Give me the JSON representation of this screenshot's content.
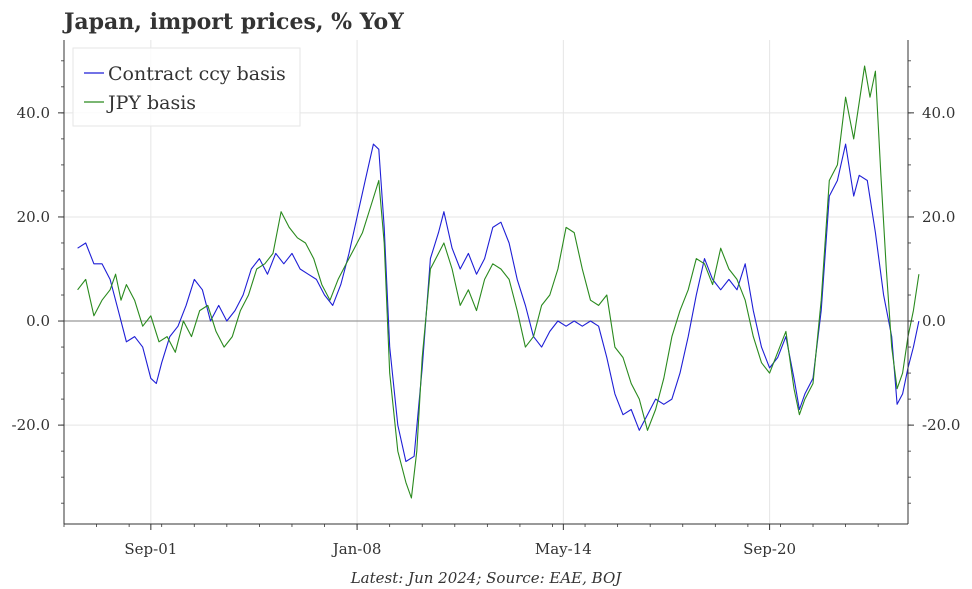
{
  "chart_data": {
    "type": "line",
    "title": "Japan, import prices, % YoY",
    "footnote": "Latest: Jun 2024; Source: EAE, BOJ",
    "xlabel": "",
    "ylabel": "",
    "xlim": [
      "1999-01",
      "2024-12"
    ],
    "ylim": [
      -39,
      54
    ],
    "x_ticks": [
      {
        "label": "Sep-01",
        "date": "2001-09"
      },
      {
        "label": "Jan-08",
        "date": "2008-01"
      },
      {
        "label": "May-14",
        "date": "2014-05"
      },
      {
        "label": "Sep-20",
        "date": "2020-09"
      }
    ],
    "y_ticks": [
      {
        "label": "-20.0",
        "value": -20
      },
      {
        "label": "0.0",
        "value": 0
      },
      {
        "label": "20.0",
        "value": 20
      },
      {
        "label": "40.0",
        "value": 40
      }
    ],
    "y_axis_both_sides": true,
    "grid": true,
    "zero_line": true,
    "legend_position": "top-left",
    "series": [
      {
        "name": "Contract ccy basis",
        "color": "#1f1fd6",
        "points": [
          [
            "1999-06",
            14
          ],
          [
            "1999-09",
            15
          ],
          [
            "1999-12",
            11
          ],
          [
            "2000-03",
            11
          ],
          [
            "2000-06",
            8
          ],
          [
            "2000-09",
            2
          ],
          [
            "2000-12",
            -4
          ],
          [
            "2001-03",
            -3
          ],
          [
            "2001-06",
            -5
          ],
          [
            "2001-09",
            -11
          ],
          [
            "2001-11",
            -12
          ],
          [
            "2002-01",
            -8
          ],
          [
            "2002-04",
            -3
          ],
          [
            "2002-07",
            -1
          ],
          [
            "2002-10",
            3
          ],
          [
            "2003-01",
            8
          ],
          [
            "2003-04",
            6
          ],
          [
            "2003-07",
            0
          ],
          [
            "2003-10",
            3
          ],
          [
            "2004-01",
            0
          ],
          [
            "2004-04",
            2
          ],
          [
            "2004-07",
            5
          ],
          [
            "2004-10",
            10
          ],
          [
            "2005-01",
            12
          ],
          [
            "2005-04",
            9
          ],
          [
            "2005-07",
            13
          ],
          [
            "2005-10",
            11
          ],
          [
            "2006-01",
            13
          ],
          [
            "2006-04",
            10
          ],
          [
            "2006-07",
            9
          ],
          [
            "2006-10",
            8
          ],
          [
            "2007-01",
            5
          ],
          [
            "2007-04",
            3
          ],
          [
            "2007-07",
            7
          ],
          [
            "2007-10",
            13
          ],
          [
            "2008-01",
            20
          ],
          [
            "2008-04",
            27
          ],
          [
            "2008-07",
            34
          ],
          [
            "2008-09",
            33
          ],
          [
            "2008-11",
            18
          ],
          [
            "2009-01",
            -5
          ],
          [
            "2009-04",
            -20
          ],
          [
            "2009-07",
            -27
          ],
          [
            "2009-10",
            -26
          ],
          [
            "2010-01",
            -9
          ],
          [
            "2010-04",
            12
          ],
          [
            "2010-07",
            17
          ],
          [
            "2010-09",
            21
          ],
          [
            "2010-12",
            14
          ],
          [
            "2011-03",
            10
          ],
          [
            "2011-06",
            13
          ],
          [
            "2011-09",
            9
          ],
          [
            "2011-12",
            12
          ],
          [
            "2012-03",
            18
          ],
          [
            "2012-06",
            19
          ],
          [
            "2012-09",
            15
          ],
          [
            "2012-12",
            8
          ],
          [
            "2013-03",
            3
          ],
          [
            "2013-06",
            -3
          ],
          [
            "2013-09",
            -5
          ],
          [
            "2013-12",
            -2
          ],
          [
            "2014-03",
            0
          ],
          [
            "2014-06",
            -1
          ],
          [
            "2014-09",
            0
          ],
          [
            "2014-12",
            -1
          ],
          [
            "2015-03",
            0
          ],
          [
            "2015-06",
            -1
          ],
          [
            "2015-09",
            -7
          ],
          [
            "2015-12",
            -14
          ],
          [
            "2016-03",
            -18
          ],
          [
            "2016-06",
            -17
          ],
          [
            "2016-09",
            -21
          ],
          [
            "2016-12",
            -18
          ],
          [
            "2017-03",
            -15
          ],
          [
            "2017-06",
            -16
          ],
          [
            "2017-09",
            -15
          ],
          [
            "2017-12",
            -10
          ],
          [
            "2018-03",
            -3
          ],
          [
            "2018-06",
            5
          ],
          [
            "2018-09",
            12
          ],
          [
            "2018-12",
            8
          ],
          [
            "2019-03",
            6
          ],
          [
            "2019-06",
            8
          ],
          [
            "2019-09",
            6
          ],
          [
            "2019-12",
            11
          ],
          [
            "2020-03",
            2
          ],
          [
            "2020-06",
            -5
          ],
          [
            "2020-09",
            -9
          ],
          [
            "2020-12",
            -7
          ],
          [
            "2021-03",
            -3
          ],
          [
            "2021-06",
            -11
          ],
          [
            "2021-08",
            -17
          ],
          [
            "2021-10",
            -14
          ],
          [
            "2022-01",
            -11
          ],
          [
            "2022-04",
            2
          ],
          [
            "2022-07",
            24
          ],
          [
            "2022-10",
            27
          ],
          [
            "2023-01",
            34
          ],
          [
            "2023-04",
            24
          ],
          [
            "2023-06",
            28
          ],
          [
            "2023-09",
            27
          ],
          [
            "2023-12",
            17
          ],
          [
            "2024-03",
            5
          ],
          [
            "2024-06",
            -3
          ],
          [
            "2024-08",
            -16
          ],
          [
            "2024-10",
            -14
          ],
          [
            "2024-12",
            -9
          ],
          [
            "2025-02",
            -5
          ],
          [
            "2025-04",
            0
          ]
        ]
      },
      {
        "name": "JPY basis",
        "color": "#2a8a1e",
        "points": [
          [
            "1999-06",
            6
          ],
          [
            "1999-09",
            8
          ],
          [
            "1999-12",
            1
          ],
          [
            "2000-03",
            4
          ],
          [
            "2000-06",
            6
          ],
          [
            "2000-08",
            9
          ],
          [
            "2000-10",
            4
          ],
          [
            "2000-12",
            7
          ],
          [
            "2001-03",
            4
          ],
          [
            "2001-06",
            -1
          ],
          [
            "2001-09",
            1
          ],
          [
            "2001-12",
            -4
          ],
          [
            "2002-03",
            -3
          ],
          [
            "2002-06",
            -6
          ],
          [
            "2002-09",
            0
          ],
          [
            "2002-12",
            -3
          ],
          [
            "2003-03",
            2
          ],
          [
            "2003-06",
            3
          ],
          [
            "2003-09",
            -2
          ],
          [
            "2003-12",
            -5
          ],
          [
            "2004-03",
            -3
          ],
          [
            "2004-06",
            2
          ],
          [
            "2004-09",
            5
          ],
          [
            "2004-12",
            10
          ],
          [
            "2005-03",
            11
          ],
          [
            "2005-06",
            13
          ],
          [
            "2005-09",
            21
          ],
          [
            "2005-12",
            18
          ],
          [
            "2006-03",
            16
          ],
          [
            "2006-06",
            15
          ],
          [
            "2006-09",
            12
          ],
          [
            "2006-12",
            7
          ],
          [
            "2007-03",
            4
          ],
          [
            "2007-06",
            8
          ],
          [
            "2007-09",
            11
          ],
          [
            "2007-12",
            14
          ],
          [
            "2008-03",
            17
          ],
          [
            "2008-06",
            22
          ],
          [
            "2008-09",
            27
          ],
          [
            "2008-11",
            15
          ],
          [
            "2009-01",
            -10
          ],
          [
            "2009-04",
            -25
          ],
          [
            "2009-07",
            -31
          ],
          [
            "2009-09",
            -34
          ],
          [
            "2009-11",
            -25
          ],
          [
            "2010-01",
            -7
          ],
          [
            "2010-04",
            10
          ],
          [
            "2010-07",
            13
          ],
          [
            "2010-09",
            15
          ],
          [
            "2010-12",
            10
          ],
          [
            "2011-03",
            3
          ],
          [
            "2011-06",
            6
          ],
          [
            "2011-09",
            2
          ],
          [
            "2011-12",
            8
          ],
          [
            "2012-03",
            11
          ],
          [
            "2012-06",
            10
          ],
          [
            "2012-09",
            8
          ],
          [
            "2012-12",
            2
          ],
          [
            "2013-03",
            -5
          ],
          [
            "2013-06",
            -3
          ],
          [
            "2013-09",
            3
          ],
          [
            "2013-12",
            5
          ],
          [
            "2014-03",
            10
          ],
          [
            "2014-06",
            18
          ],
          [
            "2014-09",
            17
          ],
          [
            "2014-12",
            10
          ],
          [
            "2015-03",
            4
          ],
          [
            "2015-06",
            3
          ],
          [
            "2015-09",
            5
          ],
          [
            "2015-12",
            -5
          ],
          [
            "2016-03",
            -7
          ],
          [
            "2016-06",
            -12
          ],
          [
            "2016-09",
            -15
          ],
          [
            "2016-12",
            -21
          ],
          [
            "2017-03",
            -17
          ],
          [
            "2017-06",
            -11
          ],
          [
            "2017-09",
            -3
          ],
          [
            "2017-12",
            2
          ],
          [
            "2018-03",
            6
          ],
          [
            "2018-06",
            12
          ],
          [
            "2018-09",
            11
          ],
          [
            "2018-12",
            7
          ],
          [
            "2019-03",
            14
          ],
          [
            "2019-06",
            10
          ],
          [
            "2019-09",
            8
          ],
          [
            "2019-12",
            4
          ],
          [
            "2020-03",
            -3
          ],
          [
            "2020-06",
            -8
          ],
          [
            "2020-09",
            -10
          ],
          [
            "2020-12",
            -6
          ],
          [
            "2021-03",
            -2
          ],
          [
            "2021-06",
            -13
          ],
          [
            "2021-08",
            -18
          ],
          [
            "2021-10",
            -15
          ],
          [
            "2022-01",
            -12
          ],
          [
            "2022-04",
            4
          ],
          [
            "2022-07",
            27
          ],
          [
            "2022-10",
            30
          ],
          [
            "2023-01",
            43
          ],
          [
            "2023-04",
            35
          ],
          [
            "2023-06",
            42
          ],
          [
            "2023-08",
            49
          ],
          [
            "2023-10",
            43
          ],
          [
            "2023-12",
            48
          ],
          [
            "2024-02",
            28
          ],
          [
            "2024-04",
            10
          ],
          [
            "2024-06",
            -5
          ],
          [
            "2024-08",
            -13
          ],
          [
            "2024-10",
            -10
          ],
          [
            "2024-12",
            -3
          ],
          [
            "2025-02",
            2
          ],
          [
            "2025-04",
            9
          ]
        ]
      }
    ]
  }
}
